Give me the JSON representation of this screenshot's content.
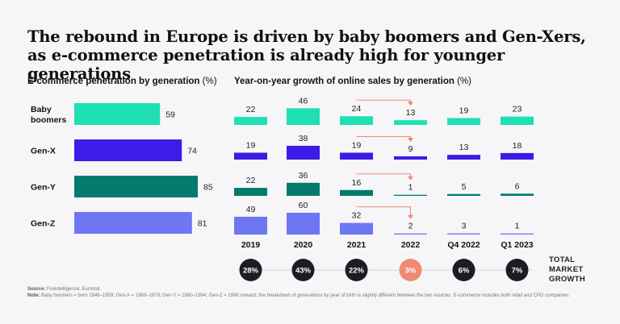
{
  "title": "The rebound in Europe is driven by baby boomers and Gen-Xers, as e-commerce penetration is already high for younger generations",
  "colors": {
    "baby_boomers": "#1ee0b4",
    "gen_x": "#3d1be8",
    "gen_y": "#037a6b",
    "gen_z": "#6e76f4",
    "arrow": "#ef8a72",
    "circle_dark": "#1c1c22",
    "circle_highlight": "#ef8a72"
  },
  "left_panel": {
    "title": "E-commerce penetration by generation",
    "unit": "(%)"
  },
  "right_panel": {
    "title": "Year-on-year growth of online sales by generation",
    "unit": "(%)",
    "total_label_lines": [
      "TOTAL",
      "MARKET",
      "GROWTH"
    ]
  },
  "footer": {
    "source_label": "Source:",
    "source_text": "Foxintelligence; Eurostat.",
    "note_label": "Note:",
    "note_text": "Baby boomers = born 1946–1959; Gen-X = 1960–1979; Gen-Y = 1980–1994; Gen-Z = 1996 onward; the breakdown of generations by year of birth is slightly different between the two sources. E-commerce includes both retail and CPG companies."
  },
  "chart_data": [
    {
      "type": "bar",
      "orientation": "horizontal",
      "title": "E-commerce penetration by generation (%)",
      "categories": [
        "Baby boomers",
        "Gen-X",
        "Gen-Y",
        "Gen-Z"
      ],
      "category_lines": [
        [
          "Baby",
          "boomers"
        ],
        [
          "Gen-X"
        ],
        [
          "Gen-Y"
        ],
        [
          "Gen-Z"
        ]
      ],
      "values": [
        59,
        74,
        85,
        81
      ],
      "xlim": [
        0,
        100
      ]
    },
    {
      "type": "bar",
      "title": "Year-on-year growth of online sales by generation (%)",
      "categories": [
        "2019",
        "2020",
        "2021",
        "2022",
        "Q4 2022",
        "Q1 2023"
      ],
      "series": [
        {
          "name": "Baby boomers",
          "values": [
            22,
            46,
            24,
            13,
            19,
            23
          ]
        },
        {
          "name": "Gen-X",
          "values": [
            19,
            38,
            19,
            9,
            13,
            18
          ]
        },
        {
          "name": "Gen-Y",
          "values": [
            22,
            36,
            16,
            1,
            5,
            6
          ]
        },
        {
          "name": "Gen-Z",
          "values": [
            49,
            60,
            32,
            2,
            3,
            1
          ]
        }
      ],
      "total_market_growth": [
        "28%",
        "43%",
        "22%",
        "3%",
        "6%",
        "7%"
      ],
      "highlight_index": 3,
      "annotation": "arrows from 2021 to 2022 indicating the decline"
    }
  ]
}
